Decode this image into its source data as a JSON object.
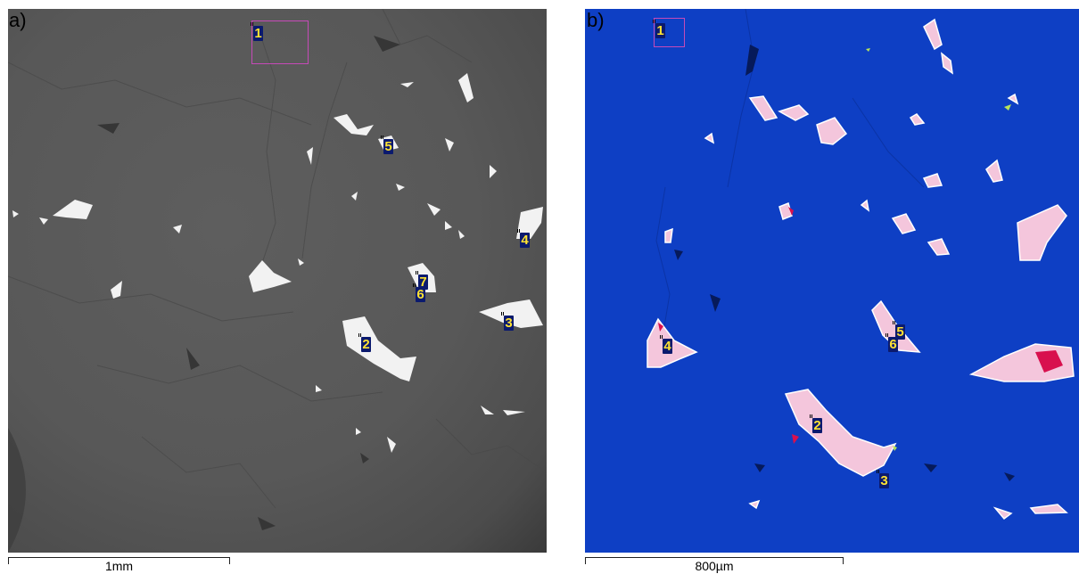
{
  "panels": [
    {
      "label": "a)",
      "markers": [
        "1",
        "2",
        "3",
        "4",
        "5",
        "6",
        "7"
      ],
      "scale_bar": "1mm",
      "colors": {
        "matrix": "#585858",
        "grains": "#f2f2f2",
        "roi_box": "#c64ab8",
        "marker_bg": "#0b1a6e",
        "marker_text": "#ffe233"
      }
    },
    {
      "label": "b)",
      "markers": [
        "1",
        "2",
        "3",
        "4",
        "5",
        "6"
      ],
      "scale_bar": "800µm",
      "colors": {
        "matrix": "#0e3fc4",
        "grains": "#f4c6dc",
        "grain_core": "#d8104e",
        "roi_box": "#c64ab8",
        "marker_bg": "#0b1a6e",
        "marker_text": "#ffe233"
      }
    }
  ]
}
